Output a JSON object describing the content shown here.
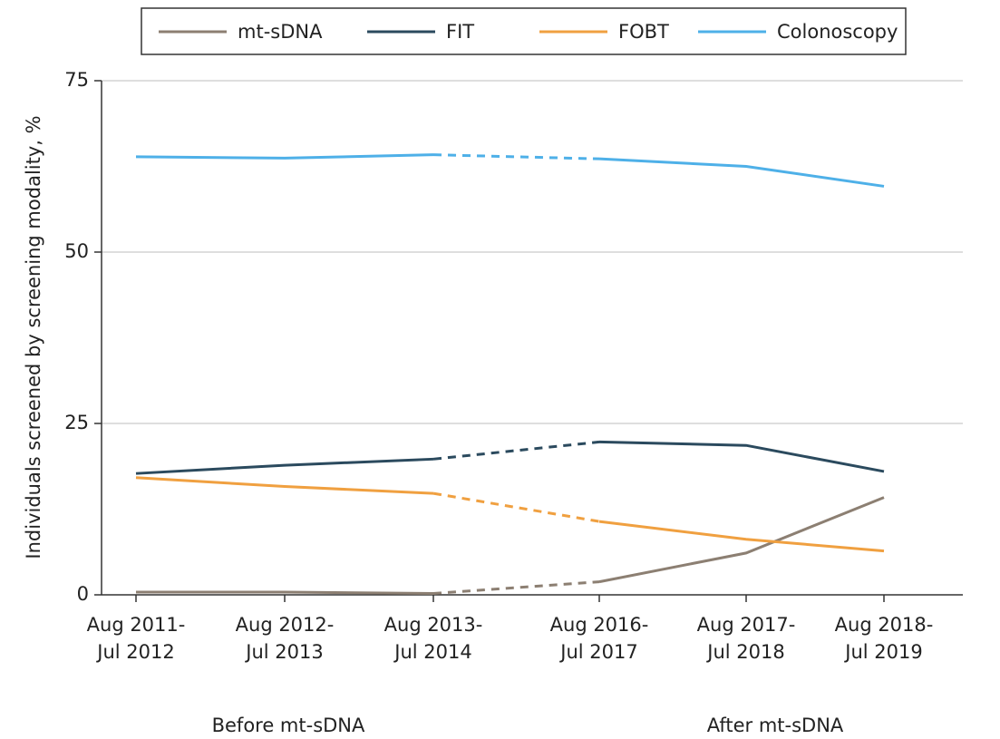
{
  "chart_data": {
    "type": "line",
    "y_label": "Individuals screened by screening modality, %",
    "categories": [
      [
        "Aug 2011-",
        "Jul 2012"
      ],
      [
        "Aug 2012-",
        "Jul 2013"
      ],
      [
        "Aug 2013-",
        "Jul 2014"
      ],
      [
        "Aug 2016-",
        "Jul 2017"
      ],
      [
        "Aug 2017-",
        "Jul 2018"
      ],
      [
        "Aug 2018-",
        "Jul 2019"
      ]
    ],
    "group_labels": [
      "Before mt-sDNA",
      "After mt-sDNA"
    ],
    "series": [
      {
        "name": "mt-sDNA",
        "color": "#8c7f72",
        "values": [
          0.4,
          0.4,
          0.2,
          1.9,
          6.1,
          14.2
        ]
      },
      {
        "name": "FIT",
        "color": "#2b4a5e",
        "values": [
          17.7,
          18.9,
          19.8,
          22.3,
          21.8,
          18.0
        ]
      },
      {
        "name": "FOBT",
        "color": "#f0a040",
        "values": [
          17.1,
          15.8,
          14.8,
          10.7,
          8.1,
          6.4
        ]
      },
      {
        "name": "Colonoscopy",
        "color": "#4eb0e8",
        "values": [
          63.9,
          63.7,
          64.2,
          63.6,
          62.5,
          59.6
        ]
      }
    ],
    "ylim": [
      0,
      75
    ],
    "yticks": [
      0,
      25,
      50,
      75
    ],
    "grid": true,
    "legend": "top"
  }
}
